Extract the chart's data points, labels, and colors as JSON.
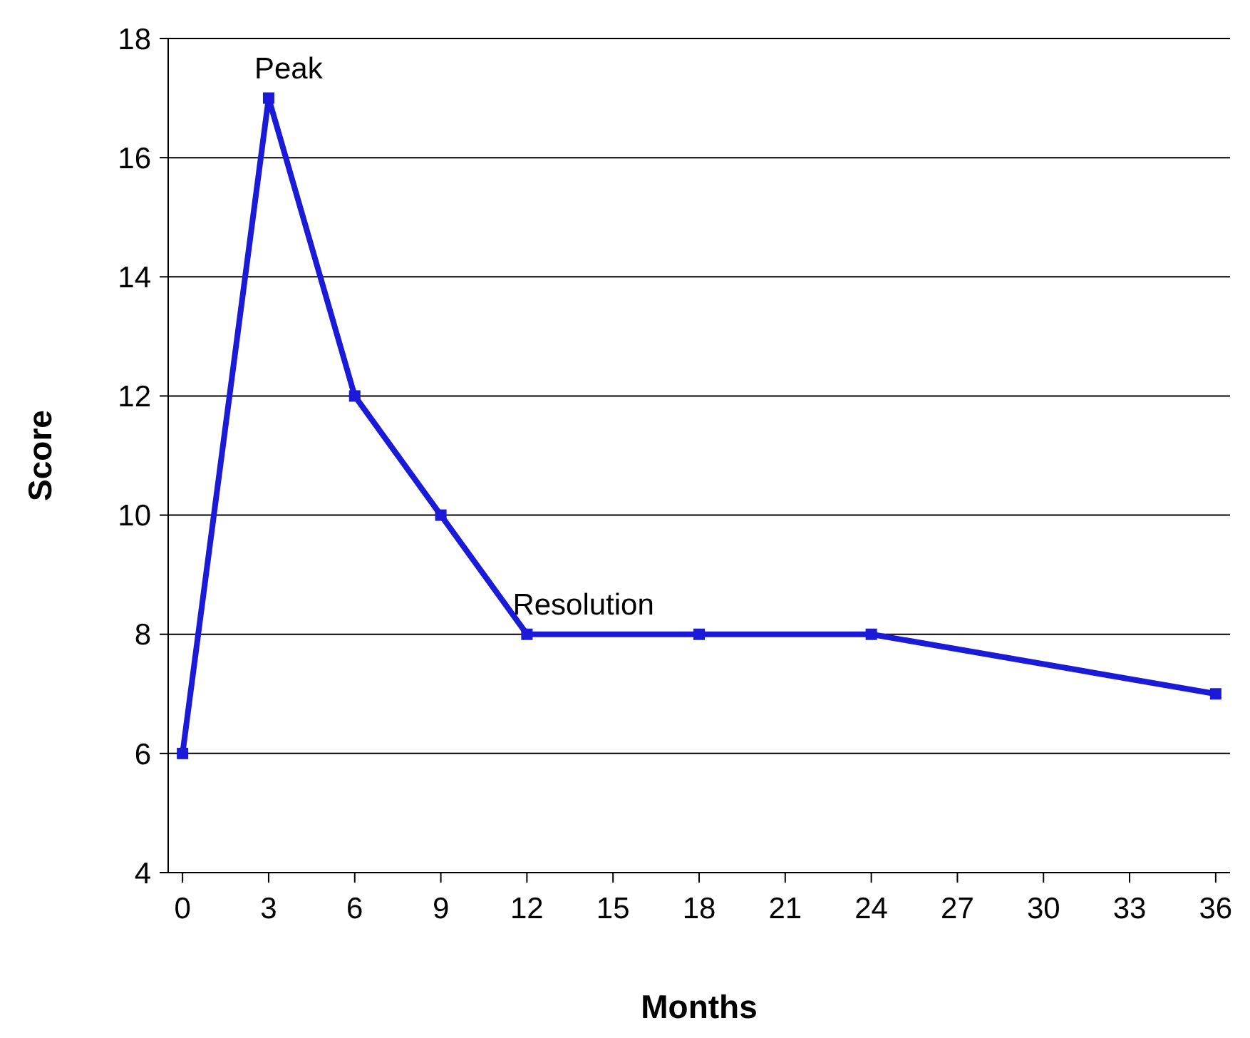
{
  "chart_data": {
    "type": "line",
    "xlabel": "Months",
    "ylabel": "Score",
    "x": [
      0,
      3,
      6,
      9,
      12,
      18,
      24,
      36
    ],
    "series": [
      {
        "color": "#1a1ad8",
        "values": [
          6,
          17,
          12,
          10,
          8,
          8,
          8,
          7
        ]
      }
    ],
    "xlim": [
      -0.5,
      36.5
    ],
    "xticks": [
      0,
      3,
      6,
      9,
      12,
      15,
      18,
      21,
      24,
      27,
      30,
      33,
      36
    ],
    "ylim": [
      4,
      18
    ],
    "yticks": [
      4,
      6,
      8,
      10,
      12,
      14,
      16,
      18
    ],
    "grid": "y",
    "marker": "square",
    "line_style": "solid",
    "annotations": [
      {
        "text": "Peak",
        "x": 3,
        "y": 17
      },
      {
        "text": "Resolution",
        "x": 12,
        "y": 8
      }
    ]
  }
}
